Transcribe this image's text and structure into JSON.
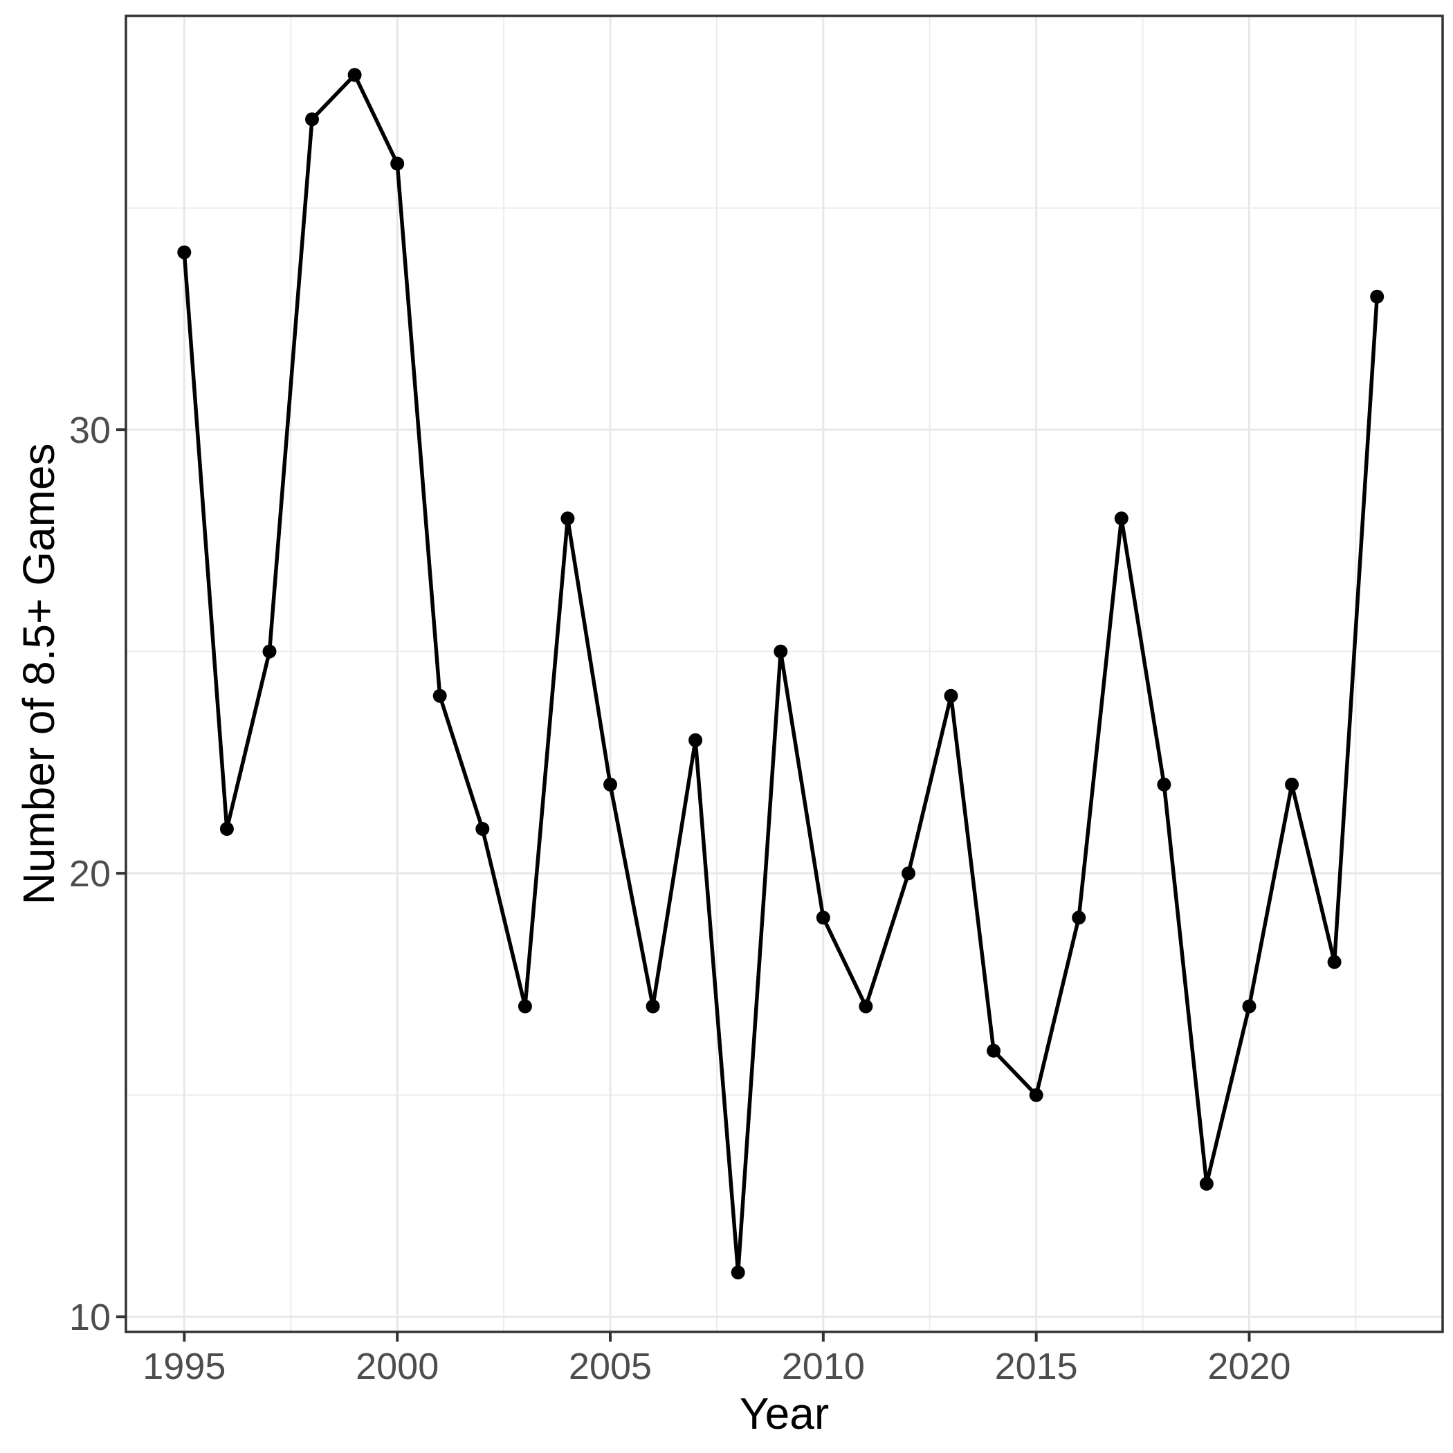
{
  "chart_data": {
    "type": "line",
    "title": "",
    "xlabel": "Year",
    "ylabel": "Number of 8.5+ Games",
    "x": [
      1995,
      1996,
      1997,
      1998,
      1999,
      2000,
      2001,
      2002,
      2003,
      2004,
      2005,
      2006,
      2007,
      2008,
      2009,
      2010,
      2011,
      2012,
      2013,
      2014,
      2015,
      2016,
      2017,
      2018,
      2019,
      2020,
      2021,
      2022,
      2023
    ],
    "values": [
      34,
      21,
      25,
      37,
      38,
      36,
      24,
      21,
      17,
      28,
      22,
      17,
      23,
      11,
      25,
      19,
      17,
      20,
      24,
      16,
      15,
      19,
      28,
      22,
      13,
      17,
      22,
      18,
      33
    ],
    "series_name": "Number of 8.5+ Games",
    "x_ticks": [
      1995,
      2000,
      2005,
      2010,
      2015,
      2020
    ],
    "x_tick_labels": [
      "1995",
      "2000",
      "2005",
      "2010",
      "2015",
      "2020"
    ],
    "x_minor_ticks": [
      1997.5,
      2002.5,
      2007.5,
      2012.5,
      2017.5,
      2022.5
    ],
    "y_ticks": [
      10,
      20,
      30
    ],
    "y_tick_labels": [
      "10",
      "20",
      "30"
    ],
    "y_minor_ticks": [
      15,
      25,
      35
    ],
    "xlim": [
      1993.63,
      2024.54
    ],
    "ylim": [
      9.66,
      39.33
    ],
    "grid": true,
    "legend": false,
    "line_color": "#000000",
    "point_color": "#000000",
    "background_color": "#FFFFFF",
    "grid_major_color": "#E8E8E8",
    "grid_minor_color": "#ECECEC",
    "panel_border_color": "#333333",
    "tick_mark_color": "#333333",
    "tick_label_color": "#4D4D4D",
    "axis_title_color": "#000000"
  }
}
